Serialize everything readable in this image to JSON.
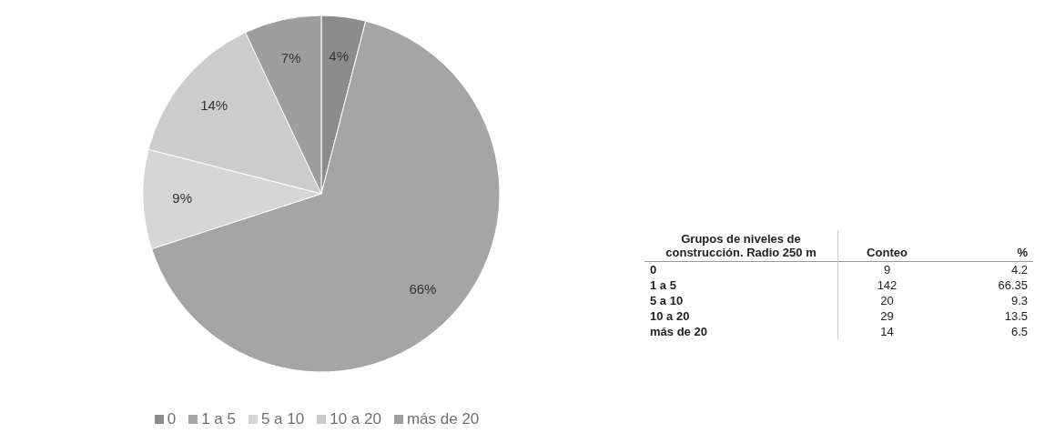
{
  "chart_data": [
    {
      "type": "pie",
      "categories": [
        "0",
        "1 a 5",
        "5 a 10",
        "10 a 20",
        "más de 20"
      ],
      "values": [
        4,
        66,
        9,
        14,
        7
      ],
      "value_labels": [
        "4%",
        "66%",
        "9%",
        "14%",
        "7%"
      ],
      "colors": [
        "#8c8c8c",
        "#a5a5a5",
        "#d6d6d6",
        "#cccccc",
        "#9e9e9e"
      ],
      "legend": "bottom"
    },
    {
      "type": "other",
      "title": "Grupos de niveles de construcción. Radio 250 m",
      "categories": [
        "0",
        "1 a 5",
        "5 a 10",
        "10 a 20",
        "más de 20"
      ],
      "series": [
        {
          "name": "Conteo",
          "values": [
            9,
            142,
            20,
            29,
            14
          ]
        },
        {
          "name": "%",
          "values": [
            4.2,
            66.35,
            9.3,
            13.5,
            6.5
          ]
        }
      ],
      "data_labels": true
    }
  ]
}
